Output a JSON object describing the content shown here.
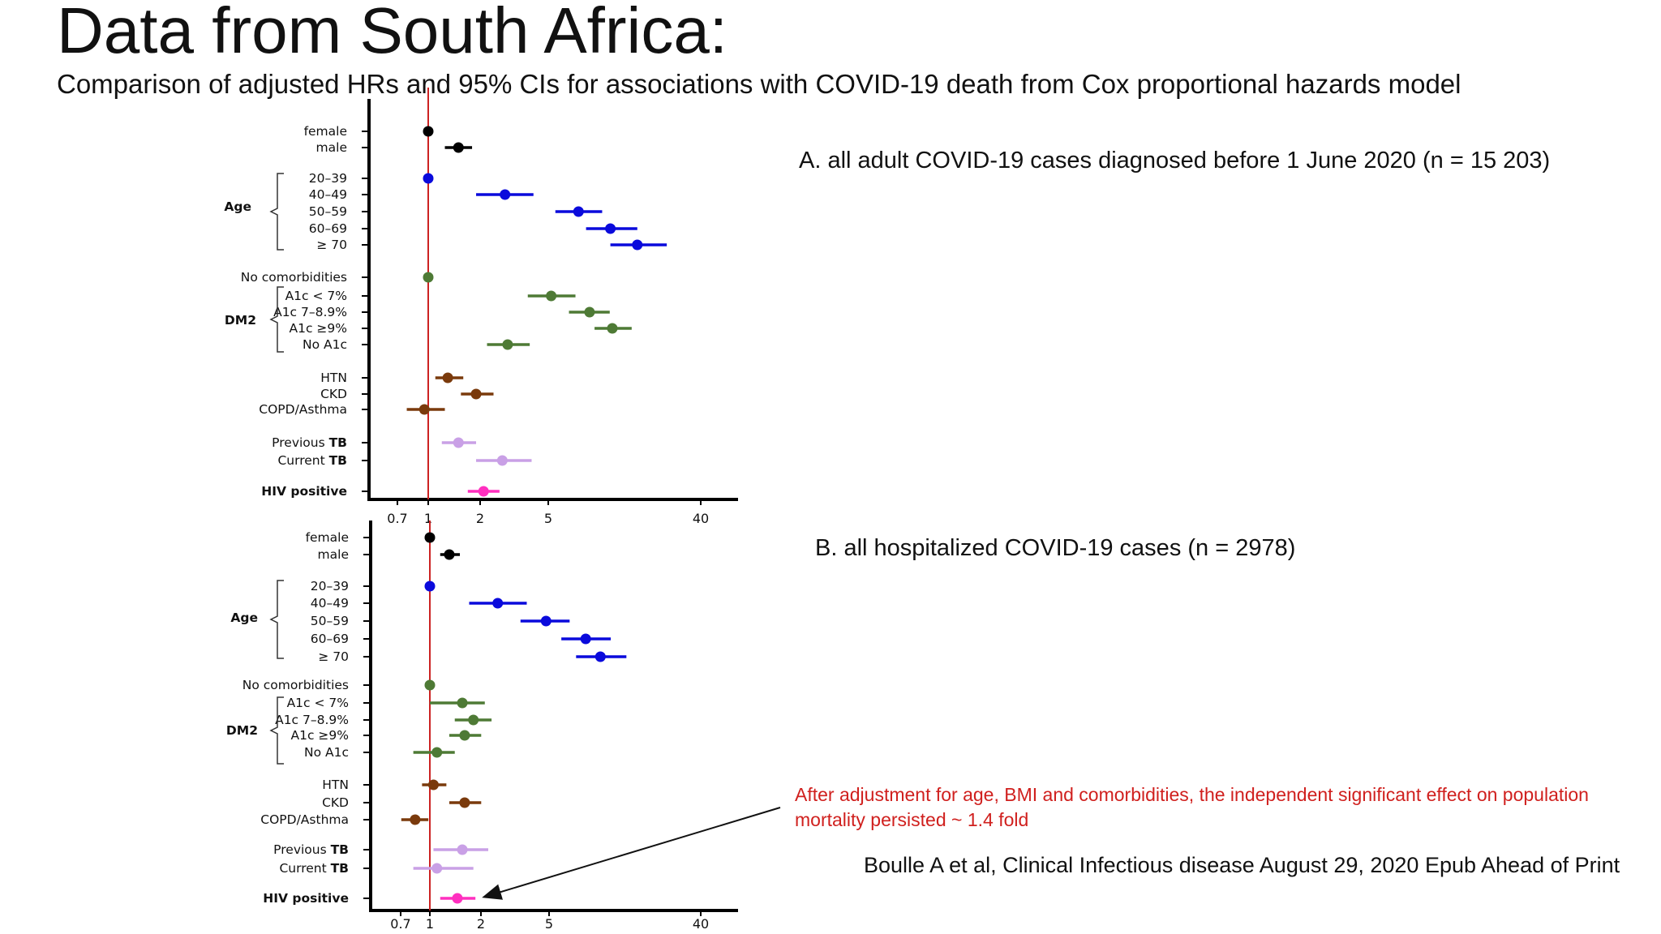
{
  "title": "Data from South Africa:",
  "subtitle": "Comparison of adjusted HRs and 95% CIs for associations with COVID-19 death from Cox proportional hazards model",
  "panels": {
    "a_label": "A. all adult COVID-19 cases diagnosed before 1 June 2020 (n = 15 203)",
    "b_label": "B. all hospitalized COVID-19 cases (n = 2978)"
  },
  "note": "After adjustment for age, BMI and comorbidities, the independent significant effect on population mortality persisted ~ 1.4 fold",
  "citation": "Boulle A et al, Clinical Infectious disease August 29, 2020 Epub Ahead of Print",
  "colors": {
    "reference_line": "#cc2222",
    "sex": "#000000",
    "age": "#0a0adc",
    "diabetes": "#4e7a35",
    "comorbidity": "#7a3a0c",
    "tb": "#c9a0e6",
    "hiv": "#ff2fbf",
    "note": "#d0201e"
  },
  "chart_data": [
    {
      "type": "forest",
      "panel": "A",
      "x_scale": "log",
      "x_ticks": [
        "0.7",
        "1",
        "2",
        "5",
        "40"
      ],
      "xlim": [
        0.55,
        60
      ],
      "reference_value": 1,
      "groups": [
        {
          "label": "Age",
          "rows": [
            "20–39",
            "40–49",
            "50–59",
            "60–69",
            "≥ 70"
          ]
        },
        {
          "label": "DM2",
          "rows": [
            "A1c < 7%",
            "A1c  7–8.9%",
            "A1c  ≥9%",
            "No A1c"
          ]
        }
      ],
      "rows": [
        {
          "label": "female",
          "hr": 1.0,
          "ci": null,
          "category": "sex"
        },
        {
          "label": "male",
          "hr": 1.5,
          "ci": [
            1.25,
            1.8
          ],
          "category": "sex"
        },
        {
          "label": "20–39",
          "hr": 1.0,
          "ci": null,
          "category": "age"
        },
        {
          "label": "40–49",
          "hr": 2.8,
          "ci": [
            1.9,
            4.1
          ],
          "category": "age"
        },
        {
          "label": "50–59",
          "hr": 7.5,
          "ci": [
            5.5,
            10.3
          ],
          "category": "age"
        },
        {
          "label": "60–69",
          "hr": 11.5,
          "ci": [
            8.3,
            16.5
          ],
          "category": "age"
        },
        {
          "label": "≥ 70",
          "hr": 16.5,
          "ci": [
            11.5,
            24.5
          ],
          "category": "age"
        },
        {
          "label": "No comorbidities",
          "hr": 1.0,
          "ci": null,
          "category": "diabetes"
        },
        {
          "label": "A1c < 7%",
          "hr": 5.2,
          "ci": [
            3.8,
            7.2
          ],
          "category": "diabetes"
        },
        {
          "label": "A1c  7–8.9%",
          "hr": 8.7,
          "ci": [
            6.6,
            11.4
          ],
          "category": "diabetes"
        },
        {
          "label": "A1c  ≥9%",
          "hr": 11.8,
          "ci": [
            9.3,
            15.3
          ],
          "category": "diabetes"
        },
        {
          "label": "No A1c",
          "hr": 2.9,
          "ci": [
            2.2,
            3.9
          ],
          "category": "diabetes"
        },
        {
          "label": "HTN",
          "hr": 1.3,
          "ci": [
            1.1,
            1.6
          ],
          "category": "comorbidity"
        },
        {
          "label": "CKD",
          "hr": 1.9,
          "ci": [
            1.55,
            2.4
          ],
          "category": "comorbidity"
        },
        {
          "label": "COPD/Asthma",
          "hr": 0.95,
          "ci": [
            0.75,
            1.25
          ],
          "category": "comorbidity"
        },
        {
          "label": "Previous TB",
          "hr": 1.5,
          "ci": [
            1.2,
            1.9
          ],
          "category": "tb"
        },
        {
          "label": "Current TB",
          "hr": 2.7,
          "ci": [
            1.9,
            4.0
          ],
          "category": "tb"
        },
        {
          "label": "HIV positive",
          "hr": 2.1,
          "ci": [
            1.7,
            2.6
          ],
          "category": "hiv"
        }
      ]
    },
    {
      "type": "forest",
      "panel": "B",
      "x_scale": "log",
      "x_ticks": [
        "0.7",
        "1",
        "2",
        "5",
        "40"
      ],
      "xlim": [
        0.55,
        60
      ],
      "reference_value": 1,
      "groups": [
        {
          "label": "Age",
          "rows": [
            "20–39",
            "40–49",
            "50–59",
            "60–69",
            "≥ 70"
          ]
        },
        {
          "label": "DM2",
          "rows": [
            "A1c < 7%",
            "A1c  7–8.9%",
            "A1c  ≥9%",
            "No A1c"
          ]
        }
      ],
      "rows": [
        {
          "label": "female",
          "hr": 1.0,
          "ci": null,
          "category": "sex"
        },
        {
          "label": "male",
          "hr": 1.3,
          "ci": [
            1.15,
            1.5
          ],
          "category": "sex"
        },
        {
          "label": "20–39",
          "hr": 1.0,
          "ci": null,
          "category": "age"
        },
        {
          "label": "40–49",
          "hr": 2.5,
          "ci": [
            1.7,
            3.7
          ],
          "category": "age"
        },
        {
          "label": "50–59",
          "hr": 4.8,
          "ci": [
            3.4,
            6.6
          ],
          "category": "age"
        },
        {
          "label": "60–69",
          "hr": 8.2,
          "ci": [
            5.9,
            11.5
          ],
          "category": "age"
        },
        {
          "label": "≥ 70",
          "hr": 10.0,
          "ci": [
            7.2,
            14.2
          ],
          "category": "age"
        },
        {
          "label": "No comorbidities",
          "hr": 1.0,
          "ci": null,
          "category": "diabetes"
        },
        {
          "label": "A1c < 7%",
          "hr": 1.55,
          "ci": [
            1.0,
            2.1
          ],
          "category": "diabetes"
        },
        {
          "label": "A1c  7–8.9%",
          "hr": 1.8,
          "ci": [
            1.4,
            2.3
          ],
          "category": "diabetes"
        },
        {
          "label": "A1c  ≥9%",
          "hr": 1.6,
          "ci": [
            1.3,
            2.0
          ],
          "category": "diabetes"
        },
        {
          "label": "No A1c",
          "hr": 1.1,
          "ci": [
            0.8,
            1.4
          ],
          "category": "diabetes"
        },
        {
          "label": "HTN",
          "hr": 1.05,
          "ci": [
            0.9,
            1.25
          ],
          "category": "comorbidity"
        },
        {
          "label": "CKD",
          "hr": 1.6,
          "ci": [
            1.3,
            2.0
          ],
          "category": "comorbidity"
        },
        {
          "label": "COPD/Asthma",
          "hr": 0.82,
          "ci": [
            0.68,
            0.98
          ],
          "category": "comorbidity"
        },
        {
          "label": "Previous TB",
          "hr": 1.55,
          "ci": [
            1.05,
            2.2
          ],
          "category": "tb"
        },
        {
          "label": "Current TB",
          "hr": 1.1,
          "ci": [
            0.8,
            1.8
          ],
          "category": "tb"
        },
        {
          "label": "HIV positive",
          "hr": 1.45,
          "ci": [
            1.15,
            1.85
          ],
          "category": "hiv"
        }
      ]
    }
  ]
}
